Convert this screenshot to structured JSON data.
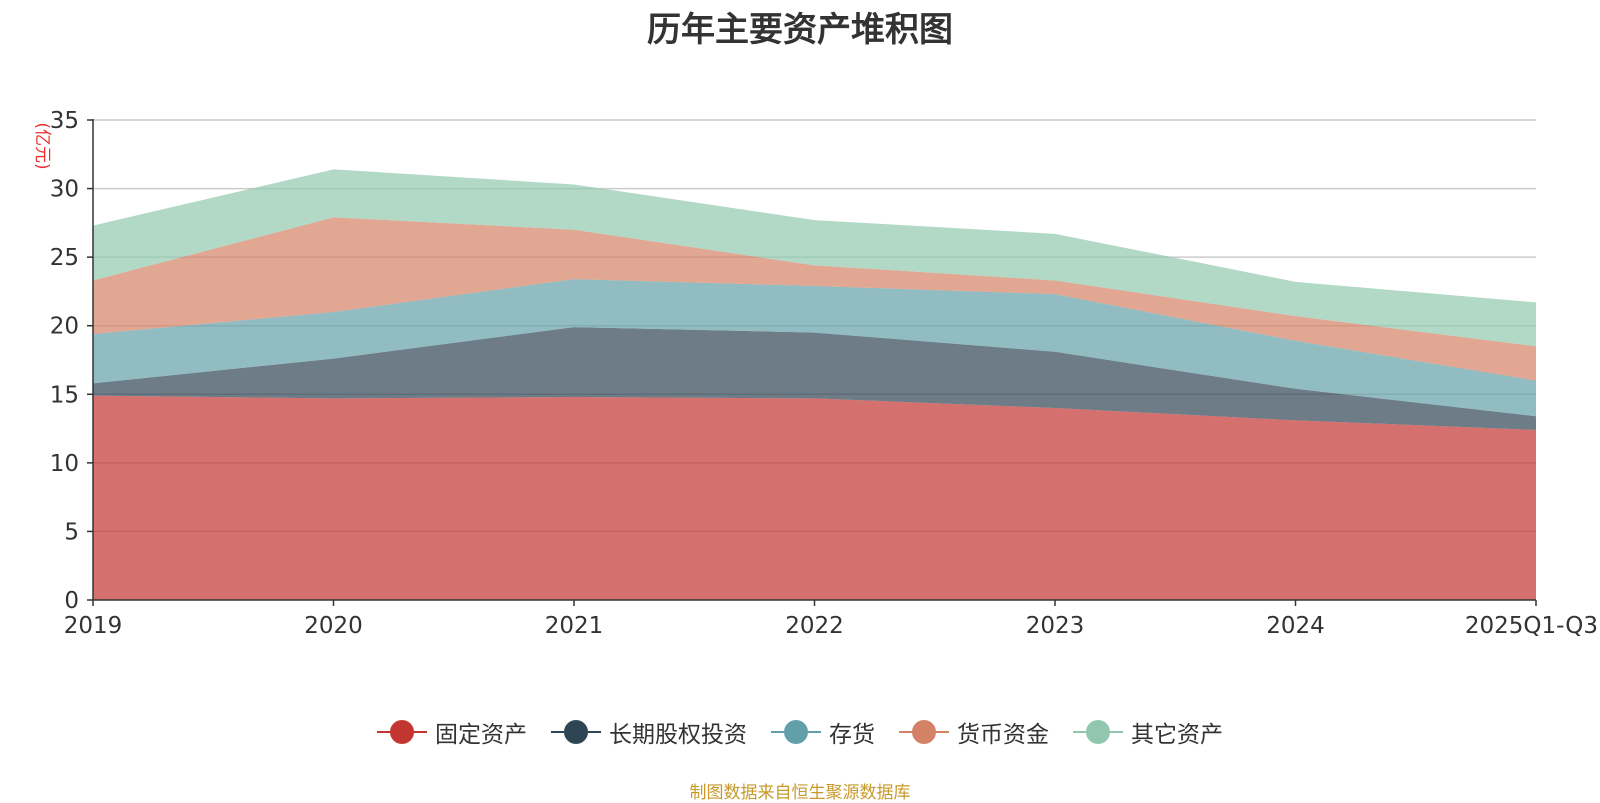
{
  "chart_data": {
    "type": "area",
    "stacked": true,
    "title": "历年主要资产堆积图",
    "ylabel": "(亿元)",
    "xlabel": "",
    "ylim": [
      0,
      35
    ],
    "yticks": [
      0,
      5,
      10,
      15,
      20,
      25,
      30,
      35
    ],
    "categories": [
      "2019",
      "2020",
      "2021",
      "2022",
      "2023",
      "2024",
      "2025Q1-Q3"
    ],
    "grid": true,
    "legend_position": "bottom",
    "series": [
      {
        "name": "固定资产",
        "color": "#c23531",
        "values": [
          14.9,
          14.7,
          14.8,
          14.7,
          14.0,
          13.1,
          12.4
        ]
      },
      {
        "name": "长期股权投资",
        "color": "#2f4554",
        "values": [
          0.9,
          2.9,
          5.1,
          4.8,
          4.1,
          2.3,
          1.0
        ]
      },
      {
        "name": "存货",
        "color": "#61a0a8",
        "values": [
          3.6,
          3.4,
          3.5,
          3.4,
          4.2,
          3.5,
          2.6
        ]
      },
      {
        "name": "货币资金",
        "color": "#d48265",
        "values": [
          3.9,
          6.9,
          3.6,
          1.5,
          1.0,
          1.8,
          2.5
        ]
      },
      {
        "name": "其它资产",
        "color": "#91c7ae",
        "values": [
          4.0,
          3.5,
          3.3,
          3.3,
          3.4,
          2.5,
          3.2
        ]
      }
    ]
  },
  "source": "制图数据来自恒生聚源数据库"
}
